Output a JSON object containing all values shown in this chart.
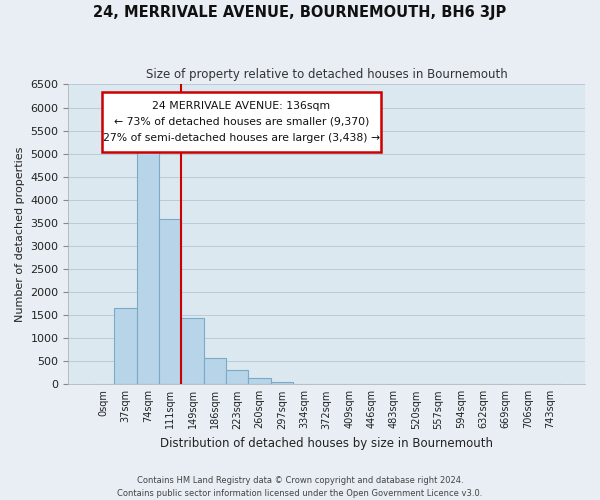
{
  "title": "24, MERRIVALE AVENUE, BOURNEMOUTH, BH6 3JP",
  "subtitle": "Size of property relative to detached houses in Bournemouth",
  "xlabel": "Distribution of detached houses by size in Bournemouth",
  "ylabel": "Number of detached properties",
  "bar_labels": [
    "0sqm",
    "37sqm",
    "74sqm",
    "111sqm",
    "149sqm",
    "186sqm",
    "223sqm",
    "260sqm",
    "297sqm",
    "334sqm",
    "372sqm",
    "409sqm",
    "446sqm",
    "483sqm",
    "520sqm",
    "557sqm",
    "594sqm",
    "632sqm",
    "669sqm",
    "706sqm",
    "743sqm"
  ],
  "bar_values": [
    0,
    1650,
    5080,
    3580,
    1430,
    580,
    300,
    145,
    60,
    0,
    0,
    0,
    0,
    0,
    0,
    0,
    0,
    0,
    0,
    0,
    0
  ],
  "bar_color": "#b8d4e8",
  "bar_edge_color": "#7aaac8",
  "property_line_color": "#cc0000",
  "property_line_x": 3.5,
  "ylim": [
    0,
    6500
  ],
  "yticks": [
    0,
    500,
    1000,
    1500,
    2000,
    2500,
    3000,
    3500,
    4000,
    4500,
    5000,
    5500,
    6000,
    6500
  ],
  "annotation_title": "24 MERRIVALE AVENUE: 136sqm",
  "annotation_line1": "← 73% of detached houses are smaller (9,370)",
  "annotation_line2": "27% of semi-detached houses are larger (3,438) →",
  "annotation_box_color": "#cc0000",
  "footer_line1": "Contains HM Land Registry data © Crown copyright and database right 2024.",
  "footer_line2": "Contains public sector information licensed under the Open Government Licence v3.0.",
  "background_color": "#e8eef4",
  "plot_bg_color": "#dce8f0",
  "grid_color": "#b8ccd8"
}
